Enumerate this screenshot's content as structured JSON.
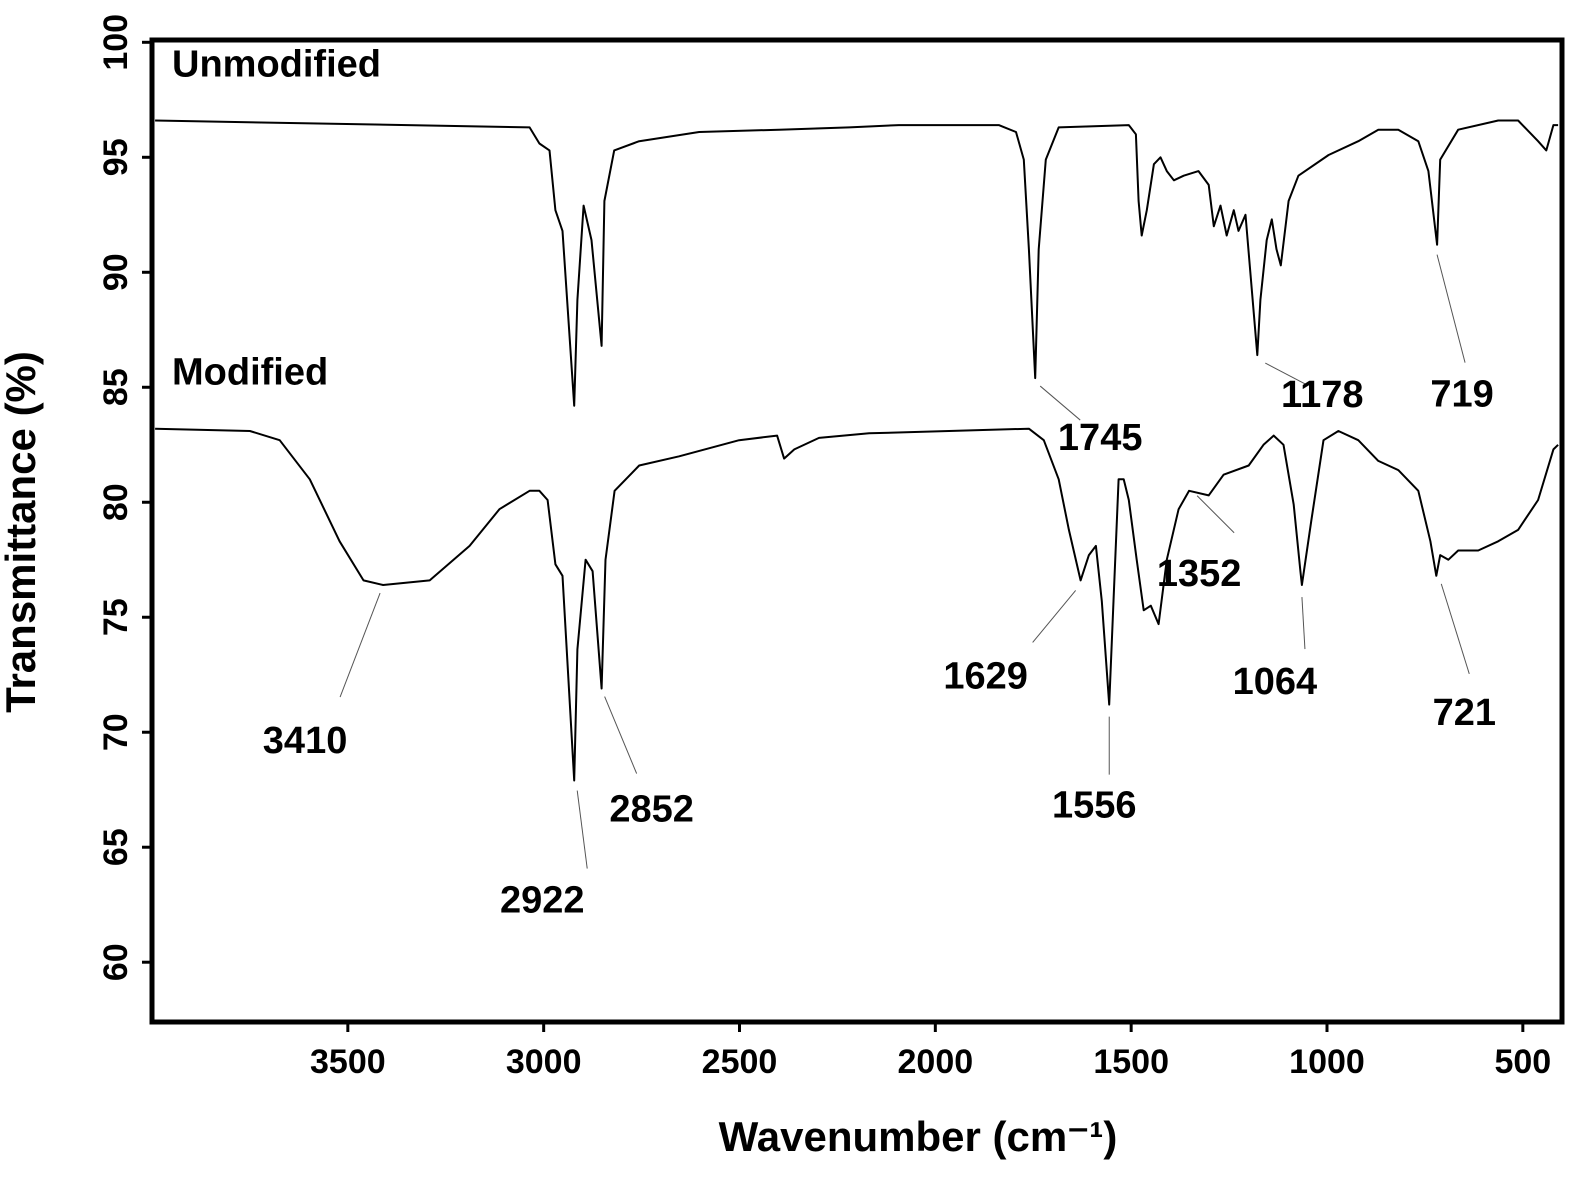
{
  "chart_data": {
    "type": "line",
    "xlabel": "Wavenumber (cm⁻¹)",
    "ylabel": "Transmittance (%)",
    "xlim": [
      4000,
      400
    ],
    "ylim": [
      57.4,
      100.1
    ],
    "xticks": [
      3500,
      3000,
      2500,
      2000,
      1500,
      1000,
      500
    ],
    "yticks": [
      60,
      65,
      70,
      75,
      80,
      85,
      90,
      95,
      100
    ],
    "series": [
      {
        "name": "Unmodified",
        "color": "#000000",
        "x": [
          3992,
          3036,
          3011,
          2985,
          2970,
          2952,
          2922,
          2914,
          2898,
          2878,
          2852,
          2845,
          2820,
          2756,
          2603,
          2399,
          2220,
          2093,
          1838,
          1794,
          1774,
          1761,
          1745,
          1736,
          1718,
          1685,
          1506,
          1488,
          1481,
          1473,
          1460,
          1442,
          1425,
          1409,
          1391,
          1366,
          1328,
          1302,
          1289,
          1272,
          1256,
          1238,
          1226,
          1208,
          1178,
          1170,
          1154,
          1141,
          1129,
          1118,
          1098,
          1073,
          996,
          920,
          869,
          818,
          767,
          741,
          719,
          711,
          665,
          563,
          512,
          461,
          440,
          422,
          410
        ],
        "values": [
          96.6,
          96.3,
          95.6,
          95.3,
          92.7,
          91.8,
          84.2,
          88.8,
          92.9,
          91.4,
          86.8,
          93.1,
          95.3,
          95.7,
          96.1,
          96.2,
          96.3,
          96.4,
          96.4,
          96.1,
          94.9,
          91.0,
          85.4,
          91.0,
          94.9,
          96.3,
          96.4,
          96.0,
          93.1,
          91.6,
          92.7,
          94.7,
          95.0,
          94.4,
          94.0,
          94.2,
          94.4,
          93.8,
          92.0,
          92.9,
          91.6,
          92.7,
          91.8,
          92.5,
          86.4,
          88.8,
          91.4,
          92.3,
          91.0,
          90.3,
          93.1,
          94.2,
          95.1,
          95.7,
          96.2,
          96.2,
          95.7,
          94.4,
          91.2,
          94.9,
          96.2,
          96.6,
          96.6,
          95.7,
          95.3,
          96.4,
          96.4
        ],
        "peaks": [
          1745,
          1178,
          719
        ]
      },
      {
        "name": "Modified",
        "color": "#000000",
        "x": [
          3992,
          3750,
          3674,
          3597,
          3521,
          3460,
          3410,
          3291,
          3189,
          3113,
          3036,
          3011,
          2990,
          2970,
          2952,
          2922,
          2914,
          2893,
          2875,
          2852,
          2842,
          2819,
          2756,
          2654,
          2501,
          2404,
          2386,
          2360,
          2297,
          2169,
          1965,
          1761,
          1723,
          1685,
          1659,
          1629,
          1608,
          1590,
          1575,
          1556,
          1545,
          1532,
          1519,
          1506,
          1486,
          1468,
          1450,
          1430,
          1409,
          1379,
          1352,
          1302,
          1264,
          1200,
          1162,
          1136,
          1111,
          1085,
          1068,
          1064,
          1040,
          1009,
          971,
          920,
          869,
          818,
          767,
          736,
          721,
          711,
          690,
          665,
          614,
          563,
          512,
          461,
          422,
          410
        ],
        "values": [
          83.2,
          83.1,
          82.7,
          81.0,
          78.3,
          76.6,
          76.4,
          76.6,
          78.1,
          79.7,
          80.5,
          80.5,
          80.1,
          77.3,
          76.8,
          67.9,
          73.6,
          77.5,
          77.0,
          71.9,
          77.5,
          80.5,
          81.6,
          82.0,
          82.7,
          82.9,
          81.9,
          82.3,
          82.8,
          83.0,
          83.1,
          83.2,
          82.7,
          81.0,
          78.8,
          76.6,
          77.7,
          78.1,
          75.7,
          71.2,
          75.7,
          81.0,
          81.0,
          80.1,
          77.5,
          75.3,
          75.5,
          74.7,
          77.5,
          79.7,
          80.5,
          80.3,
          81.2,
          81.6,
          82.5,
          82.9,
          82.5,
          79.9,
          77.0,
          76.4,
          79.2,
          82.7,
          83.1,
          82.7,
          81.8,
          81.4,
          80.5,
          78.3,
          76.8,
          77.7,
          77.5,
          77.9,
          77.9,
          78.3,
          78.8,
          80.1,
          82.3,
          82.5
        ],
        "peaks": [
          3410,
          2922,
          2852,
          1629,
          1556,
          1352,
          1064,
          721
        ]
      }
    ]
  }
}
